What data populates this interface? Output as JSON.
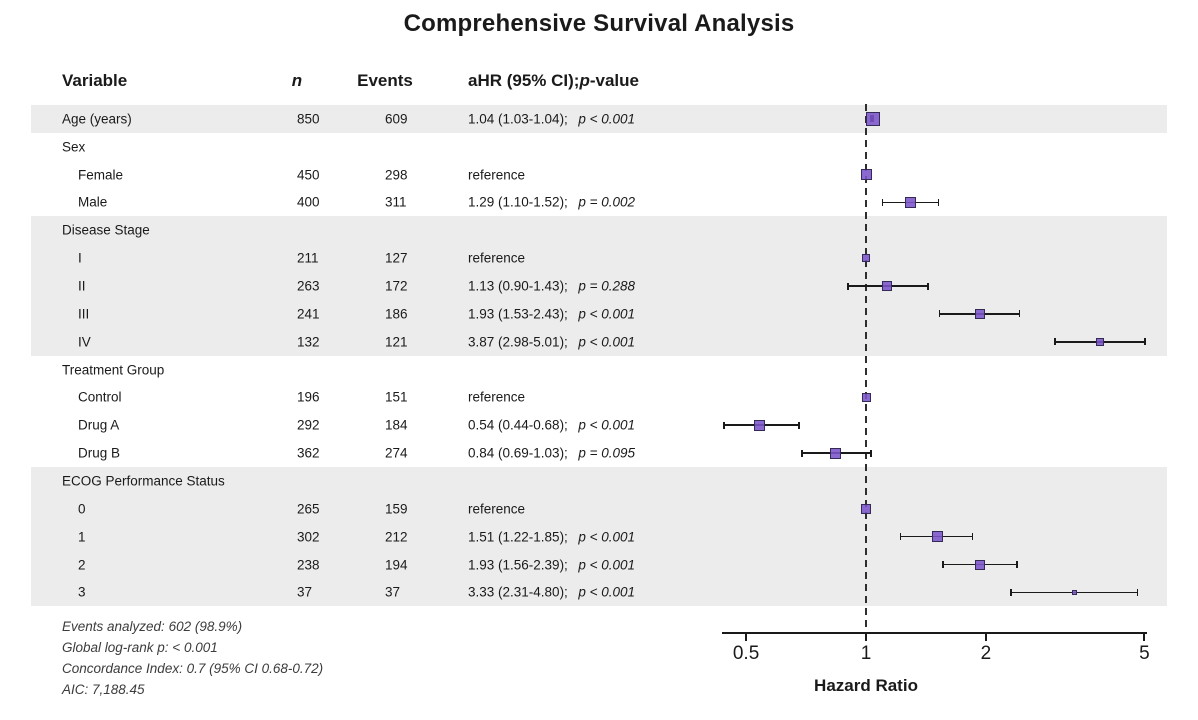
{
  "title": "Comprehensive Survival Analysis",
  "header": {
    "variable": "Variable",
    "n": "n",
    "events": "Events",
    "ahr_prefix": "aHR (95% CI); ",
    "ahr_p": "p",
    "ahr_suffix": "-value"
  },
  "axis": {
    "label": "Hazard Ratio",
    "scale": "log",
    "ticks": [
      0.5,
      1,
      2,
      5
    ],
    "range": [
      0.43,
      5.1
    ],
    "reference_line": 1
  },
  "colors": {
    "marker_fill": "#7c54c9",
    "marker_border": "#342a56",
    "band_shaded": "#ececec",
    "band_plain": "#ffffff",
    "axis": "#1a1a1a"
  },
  "footnotes": [
    "Events analyzed: 602 (98.9%)",
    "Global log-rank p: < 0.001",
    "Concordance Index: 0.7 (95% CI 0.68-0.72)",
    "AIC: 7,188.45"
  ],
  "chart_data": {
    "type": "forest",
    "xlabel": "Hazard Ratio",
    "xscale": "log",
    "xticks": [
      0.5,
      1,
      2,
      5
    ],
    "rows": [
      {
        "label": "Age (years)",
        "indent": 0,
        "group_header": false,
        "n": "850",
        "events": "609",
        "est": "1.04 (1.03-1.04); ",
        "p": "p < 0.001",
        "hr": 1.04,
        "lo": 1.03,
        "hi": 1.04,
        "size": 14,
        "shaded": true
      },
      {
        "label": "Sex",
        "indent": 0,
        "group_header": true,
        "shaded": false
      },
      {
        "label": "Female",
        "indent": 1,
        "group_header": false,
        "n": "450",
        "events": "298",
        "est": "reference",
        "p": "",
        "hr": 1,
        "lo": 1,
        "hi": 1,
        "size": 11,
        "shaded": false
      },
      {
        "label": "Male",
        "indent": 1,
        "group_header": false,
        "n": "400",
        "events": "311",
        "est": "1.29 (1.10-1.52); ",
        "p": "p = 0.002",
        "hr": 1.29,
        "lo": 1.1,
        "hi": 1.52,
        "size": 11,
        "shaded": false
      },
      {
        "label": "Disease Stage",
        "indent": 0,
        "group_header": true,
        "shaded": true
      },
      {
        "label": "I",
        "indent": 1,
        "group_header": false,
        "n": "211",
        "events": "127",
        "est": "reference",
        "p": "",
        "hr": 1,
        "lo": 1,
        "hi": 1,
        "size": 8,
        "shaded": true
      },
      {
        "label": "II",
        "indent": 1,
        "group_header": false,
        "n": "263",
        "events": "172",
        "est": "1.13 (0.90-1.43); ",
        "p": "p = 0.288",
        "hr": 1.13,
        "lo": 0.9,
        "hi": 1.43,
        "size": 10,
        "shaded": true
      },
      {
        "label": "III",
        "indent": 1,
        "group_header": false,
        "n": "241",
        "events": "186",
        "est": "1.93 (1.53-2.43); ",
        "p": "p < 0.001",
        "hr": 1.93,
        "lo": 1.53,
        "hi": 2.43,
        "size": 10,
        "shaded": true
      },
      {
        "label": "IV",
        "indent": 1,
        "group_header": false,
        "n": "132",
        "events": "121",
        "est": "3.87 (2.98-5.01); ",
        "p": "p < 0.001",
        "hr": 3.87,
        "lo": 2.98,
        "hi": 5.01,
        "size": 8,
        "shaded": true
      },
      {
        "label": "Treatment Group",
        "indent": 0,
        "group_header": true,
        "shaded": false
      },
      {
        "label": "Control",
        "indent": 1,
        "group_header": false,
        "n": "196",
        "events": "151",
        "est": "reference",
        "p": "",
        "hr": 1,
        "lo": 1,
        "hi": 1,
        "size": 9,
        "shaded": false
      },
      {
        "label": "Drug A",
        "indent": 1,
        "group_header": false,
        "n": "292",
        "events": "184",
        "est": "0.54 (0.44-0.68); ",
        "p": "p < 0.001",
        "hr": 0.54,
        "lo": 0.44,
        "hi": 0.68,
        "size": 11,
        "shaded": false
      },
      {
        "label": "Drug B",
        "indent": 1,
        "group_header": false,
        "n": "362",
        "events": "274",
        "est": "0.84 (0.69-1.03); ",
        "p": "p = 0.095",
        "hr": 0.84,
        "lo": 0.69,
        "hi": 1.03,
        "size": 11,
        "shaded": false
      },
      {
        "label": "ECOG Performance Status",
        "indent": 0,
        "group_header": true,
        "shaded": true
      },
      {
        "label": "0",
        "indent": 1,
        "group_header": false,
        "n": "265",
        "events": "159",
        "est": "reference",
        "p": "",
        "hr": 1,
        "lo": 1,
        "hi": 1,
        "size": 10,
        "shaded": true
      },
      {
        "label": "1",
        "indent": 1,
        "group_header": false,
        "n": "302",
        "events": "212",
        "est": "1.51 (1.22-1.85); ",
        "p": "p < 0.001",
        "hr": 1.51,
        "lo": 1.22,
        "hi": 1.85,
        "size": 11,
        "shaded": true
      },
      {
        "label": "2",
        "indent": 1,
        "group_header": false,
        "n": "238",
        "events": "194",
        "est": "1.93 (1.56-2.39); ",
        "p": "p < 0.001",
        "hr": 1.93,
        "lo": 1.56,
        "hi": 2.39,
        "size": 10,
        "shaded": true
      },
      {
        "label": "3",
        "indent": 1,
        "group_header": false,
        "n": "37",
        "events": "37",
        "est": "3.33 (2.31-4.80); ",
        "p": "p < 0.001",
        "hr": 3.33,
        "lo": 2.31,
        "hi": 4.8,
        "size": 5,
        "shaded": true
      }
    ]
  }
}
